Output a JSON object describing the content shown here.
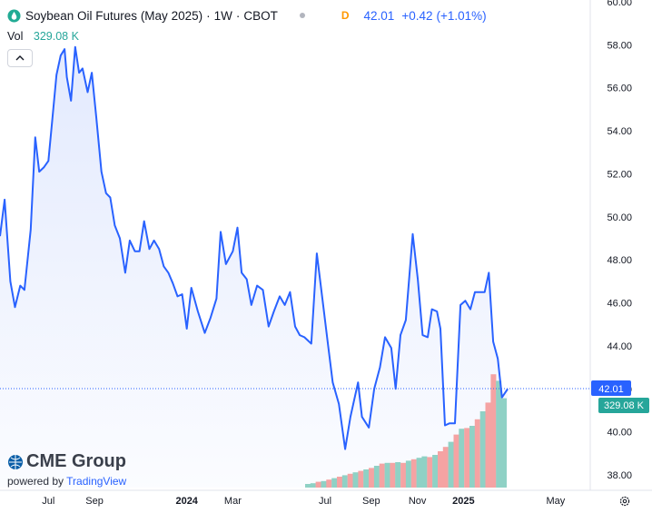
{
  "header": {
    "title": "Soybean Oil Futures (May 2025)",
    "interval": "1W",
    "exchange": "CBOT",
    "separator": "·",
    "d_marker": "D",
    "last_price": "42.01",
    "change": "+0.42",
    "change_pct": "(+1.01%)"
  },
  "volume": {
    "label": "Vol",
    "value": "329.08 K"
  },
  "badges": {
    "price": "42.01",
    "volume": "329.08 K"
  },
  "branding": {
    "logo_text": "CME Group",
    "powered_by": "powered by",
    "platform": "TradingView"
  },
  "icons": {
    "symbol": "green-drop-icon",
    "collapse": "chevron-up-icon",
    "settings": "gear-icon"
  },
  "colors": {
    "line": "#2962ff",
    "area_fill": "#e3eafe",
    "vol_up": "#8fd1c5",
    "vol_down": "#f5a3a3",
    "axis_text": "#131722",
    "price_badge": "#2962ff",
    "volume_badge": "#26a69a"
  },
  "chart_data": {
    "type": "area",
    "title": "Soybean Oil Futures (May 2025)",
    "ylim": [
      37.5,
      60.0
    ],
    "y_ticks": [
      "38.00",
      "40.00",
      "42.00",
      "44.00",
      "46.00",
      "48.00",
      "50.00",
      "52.00",
      "54.00",
      "56.00",
      "58.00",
      "60.00"
    ],
    "x_ticks": [
      {
        "label": "Jul",
        "x": 6.0,
        "bold": false
      },
      {
        "label": "Sep",
        "x": 8.0,
        "bold": false
      },
      {
        "label": "2024",
        "x": 12.0,
        "bold": true
      },
      {
        "label": "Mar",
        "x": 14.0,
        "bold": false
      },
      {
        "label": "Jul",
        "x": 18.0,
        "bold": false
      },
      {
        "label": "Sep",
        "x": 20.0,
        "bold": false
      },
      {
        "label": "Nov",
        "x": 22.0,
        "bold": false
      },
      {
        "label": "2025",
        "x": 24.0,
        "bold": true
      },
      {
        "label": "May",
        "x": 28.0,
        "bold": false
      }
    ],
    "xlim": [
      3.9,
      29.5
    ],
    "grid": false,
    "series": [
      {
        "type": "line",
        "values": [
          [
            3.9,
            49.1
          ],
          [
            4.1,
            50.8
          ],
          [
            4.35,
            47.0
          ],
          [
            4.55,
            45.8
          ],
          [
            4.78,
            46.8
          ],
          [
            4.96,
            46.6
          ],
          [
            5.23,
            49.4
          ],
          [
            5.43,
            53.7
          ],
          [
            5.6,
            52.1
          ],
          [
            5.8,
            52.3
          ],
          [
            6.0,
            52.6
          ],
          [
            6.15,
            54.3
          ],
          [
            6.35,
            56.6
          ],
          [
            6.53,
            57.5
          ],
          [
            6.7,
            57.8
          ],
          [
            6.8,
            56.5
          ],
          [
            6.98,
            55.4
          ],
          [
            7.16,
            57.9
          ],
          [
            7.33,
            56.7
          ],
          [
            7.48,
            56.9
          ],
          [
            7.7,
            55.8
          ],
          [
            7.88,
            56.7
          ],
          [
            8.08,
            54.6
          ],
          [
            8.3,
            52.1
          ],
          [
            8.5,
            51.1
          ],
          [
            8.68,
            50.9
          ],
          [
            8.88,
            49.6
          ],
          [
            9.1,
            49.0
          ],
          [
            9.33,
            47.4
          ],
          [
            9.53,
            48.9
          ],
          [
            9.75,
            48.4
          ],
          [
            9.95,
            48.4
          ],
          [
            10.15,
            49.8
          ],
          [
            10.38,
            48.5
          ],
          [
            10.58,
            48.9
          ],
          [
            10.8,
            48.5
          ],
          [
            11.0,
            47.7
          ],
          [
            11.2,
            47.4
          ],
          [
            11.4,
            46.9
          ],
          [
            11.6,
            46.3
          ],
          [
            11.8,
            46.4
          ],
          [
            12.0,
            44.8
          ],
          [
            12.2,
            46.7
          ],
          [
            12.48,
            45.6
          ],
          [
            12.78,
            44.6
          ],
          [
            13.03,
            45.3
          ],
          [
            13.29,
            46.2
          ],
          [
            13.47,
            49.3
          ],
          [
            13.7,
            47.8
          ],
          [
            14.0,
            48.4
          ],
          [
            14.2,
            49.5
          ],
          [
            14.38,
            47.4
          ],
          [
            14.6,
            47.1
          ],
          [
            14.8,
            45.9
          ],
          [
            15.05,
            46.8
          ],
          [
            15.3,
            46.6
          ],
          [
            15.55,
            44.9
          ],
          [
            15.78,
            45.6
          ],
          [
            16.03,
            46.3
          ],
          [
            16.25,
            45.9
          ],
          [
            16.48,
            46.5
          ],
          [
            16.7,
            44.9
          ],
          [
            16.9,
            44.5
          ],
          [
            17.1,
            44.4
          ],
          [
            17.4,
            44.1
          ],
          [
            17.64,
            48.3
          ],
          [
            17.88,
            46.2
          ],
          [
            18.1,
            44.3
          ],
          [
            18.33,
            42.3
          ],
          [
            18.6,
            41.3
          ],
          [
            18.87,
            39.2
          ],
          [
            19.1,
            40.7
          ],
          [
            19.43,
            42.3
          ],
          [
            19.6,
            40.7
          ],
          [
            19.9,
            40.2
          ],
          [
            20.13,
            42.0
          ],
          [
            20.38,
            43.0
          ],
          [
            20.6,
            44.4
          ],
          [
            20.87,
            43.9
          ],
          [
            21.06,
            42.0
          ],
          [
            21.27,
            44.5
          ],
          [
            21.5,
            45.2
          ],
          [
            21.8,
            49.2
          ],
          [
            22.02,
            47.1
          ],
          [
            22.23,
            44.5
          ],
          [
            22.45,
            44.4
          ],
          [
            22.63,
            45.7
          ],
          [
            22.85,
            45.6
          ],
          [
            23.0,
            44.8
          ],
          [
            23.2,
            40.3
          ],
          [
            23.4,
            40.4
          ],
          [
            23.63,
            40.4
          ],
          [
            23.87,
            45.9
          ],
          [
            24.08,
            46.1
          ],
          [
            24.3,
            45.7
          ],
          [
            24.5,
            46.5
          ],
          [
            24.67,
            46.5
          ],
          [
            24.92,
            46.5
          ],
          [
            25.1,
            47.4
          ],
          [
            25.29,
            44.2
          ],
          [
            25.49,
            43.4
          ],
          [
            25.67,
            41.6
          ],
          [
            25.92,
            42.0
          ]
        ]
      },
      {
        "type": "volume",
        "values": [
          [
            17.25,
            0.05,
            "up"
          ],
          [
            17.48,
            0.06,
            "up"
          ],
          [
            17.71,
            0.08,
            "down"
          ],
          [
            17.94,
            0.09,
            "up"
          ],
          [
            18.17,
            0.11,
            "down"
          ],
          [
            18.4,
            0.13,
            "up"
          ],
          [
            18.63,
            0.15,
            "down"
          ],
          [
            18.86,
            0.17,
            "up"
          ],
          [
            19.09,
            0.19,
            "down"
          ],
          [
            19.32,
            0.21,
            "up"
          ],
          [
            19.55,
            0.23,
            "down"
          ],
          [
            19.78,
            0.25,
            "up"
          ],
          [
            20.01,
            0.27,
            "down"
          ],
          [
            20.24,
            0.3,
            "up"
          ],
          [
            20.47,
            0.33,
            "down"
          ],
          [
            20.7,
            0.34,
            "up"
          ],
          [
            20.93,
            0.34,
            "down"
          ],
          [
            21.16,
            0.35,
            "up"
          ],
          [
            21.39,
            0.34,
            "down"
          ],
          [
            21.62,
            0.37,
            "up"
          ],
          [
            21.85,
            0.39,
            "down"
          ],
          [
            22.08,
            0.41,
            "up"
          ],
          [
            22.31,
            0.43,
            "up"
          ],
          [
            22.54,
            0.42,
            "down"
          ],
          [
            22.77,
            0.45,
            "up"
          ],
          [
            23.0,
            0.5,
            "down"
          ],
          [
            23.23,
            0.56,
            "down"
          ],
          [
            23.46,
            0.63,
            "up"
          ],
          [
            23.69,
            0.73,
            "down"
          ],
          [
            23.92,
            0.81,
            "up"
          ],
          [
            24.15,
            0.82,
            "down"
          ],
          [
            24.38,
            0.85,
            "up"
          ],
          [
            24.61,
            0.94,
            "down"
          ],
          [
            24.84,
            1.05,
            "up"
          ],
          [
            25.07,
            1.17,
            "down"
          ],
          [
            25.3,
            1.56,
            "down"
          ],
          [
            25.53,
            1.47,
            "up"
          ],
          [
            25.76,
            1.23,
            "up"
          ]
        ]
      }
    ]
  }
}
